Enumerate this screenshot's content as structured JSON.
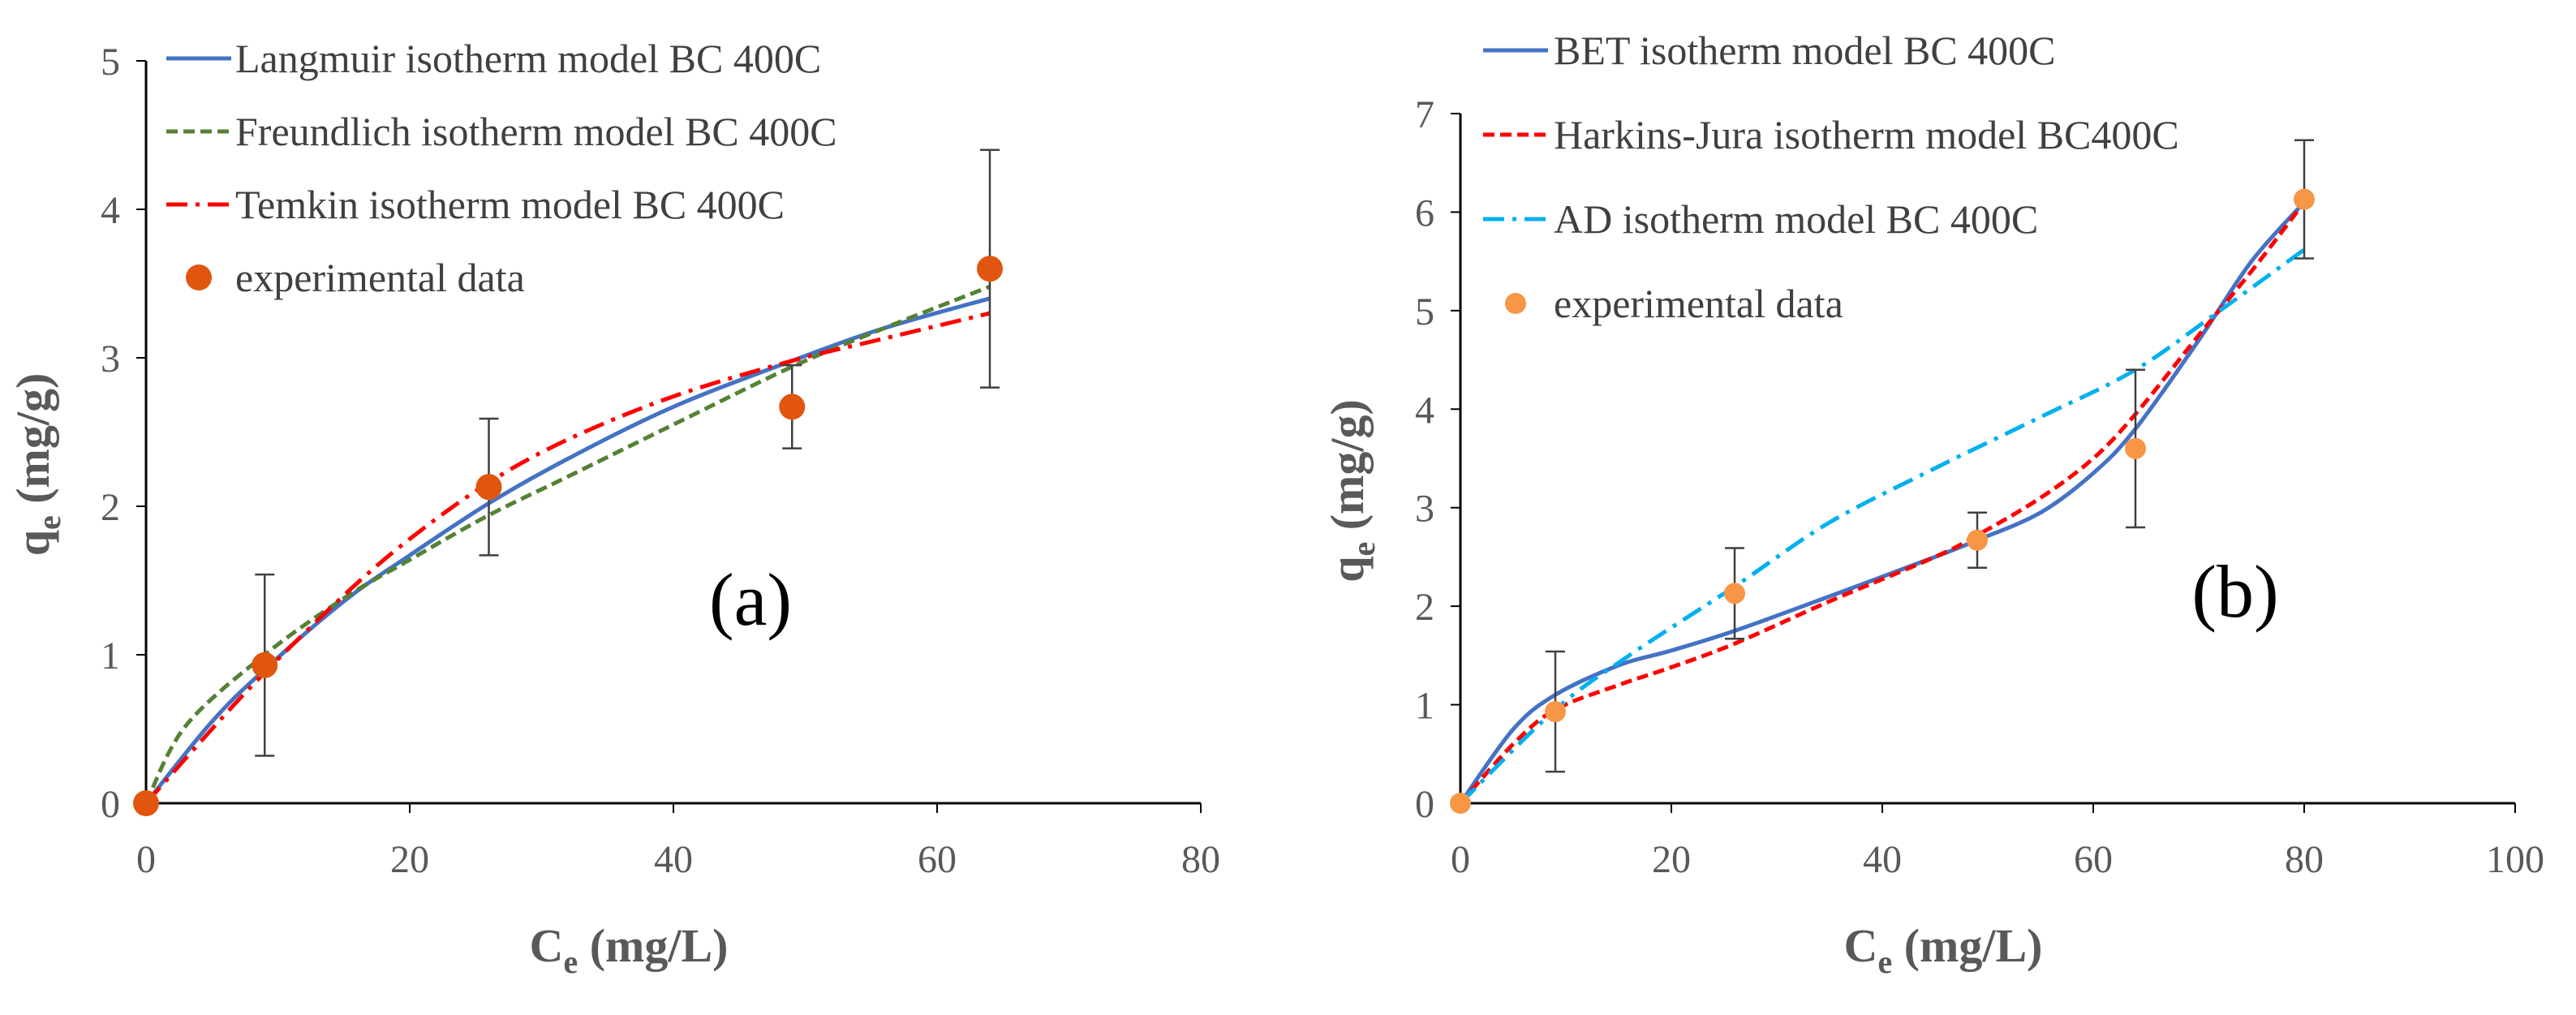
{
  "chart_data": [
    {
      "type": "line",
      "panel_label": "(a)",
      "xlabel": "C",
      "xlabel_sub": "e",
      "xlabel_unit": " (mg/L)",
      "ylabel": "q",
      "ylabel_sub": "e",
      "ylabel_unit": " (mg/g)",
      "xlim": [
        0,
        80
      ],
      "ylim": [
        0,
        5
      ],
      "xticks": [
        0,
        20,
        40,
        60,
        80
      ],
      "yticks": [
        0,
        1,
        2,
        3,
        4,
        5
      ],
      "grid": false,
      "legend_position": "top-left",
      "series": [
        {
          "name": "Langmuir isotherm model BC 400C",
          "style": "solid",
          "color": "#4472C4",
          "x": [
            0,
            5,
            9,
            15,
            20,
            26,
            32,
            40,
            49,
            56,
            64
          ],
          "y": [
            0,
            0.55,
            0.9,
            1.36,
            1.67,
            2.02,
            2.32,
            2.67,
            2.98,
            3.2,
            3.4
          ]
        },
        {
          "name": "Freundlich isotherm model BC 400C",
          "style": "dashed",
          "color": "#548235",
          "x": [
            0,
            3,
            9,
            15,
            20,
            26,
            32,
            40,
            49,
            56,
            64
          ],
          "y": [
            0,
            0.52,
            1.0,
            1.38,
            1.64,
            1.94,
            2.2,
            2.55,
            2.94,
            3.2,
            3.48
          ]
        },
        {
          "name": "Temkin isotherm model BC 400C",
          "style": "dashdot",
          "color": "#FF0000",
          "x": [
            0,
            5,
            9,
            15,
            20,
            26,
            32,
            40,
            49,
            56,
            64
          ],
          "y": [
            0,
            0.5,
            0.88,
            1.4,
            1.78,
            2.16,
            2.45,
            2.74,
            2.98,
            3.13,
            3.3
          ]
        }
      ],
      "experimental": {
        "name": "experimental data",
        "color": "#E0560F",
        "x": [
          0,
          9,
          26,
          49,
          64
        ],
        "y": [
          0,
          0.93,
          2.13,
          2.67,
          3.6
        ],
        "err": [
          0,
          0.61,
          0.46,
          0.28,
          0.8
        ]
      }
    },
    {
      "type": "line",
      "panel_label": "(b)",
      "xlabel": "C",
      "xlabel_sub": "e",
      "xlabel_unit": " (mg/L)",
      "ylabel": "q",
      "ylabel_sub": "e",
      "ylabel_unit": " (mg/g)",
      "xlim": [
        0,
        100
      ],
      "ylim": [
        0,
        7
      ],
      "xticks": [
        0,
        20,
        40,
        60,
        80,
        100
      ],
      "yticks": [
        0,
        1,
        2,
        3,
        4,
        5,
        6,
        7
      ],
      "grid": false,
      "legend_position": "top-left",
      "series": [
        {
          "name": "BET isotherm model BC 400C",
          "style": "solid",
          "color": "#4472C4",
          "x": [
            0,
            5,
            9,
            15,
            20,
            26,
            35,
            45,
            49,
            55,
            60,
            64,
            70,
            75,
            80
          ],
          "y": [
            0,
            0.75,
            1.1,
            1.4,
            1.55,
            1.75,
            2.1,
            2.5,
            2.67,
            2.95,
            3.35,
            3.8,
            4.7,
            5.5,
            6.1
          ]
        },
        {
          "name": "Harkins-Jura isotherm model BC400C",
          "style": "dashed",
          "color": "#FF0000",
          "x": [
            0,
            5,
            9,
            15,
            20,
            26,
            35,
            45,
            49,
            55,
            60,
            64,
            70,
            75,
            80
          ],
          "y": [
            0,
            0.6,
            0.95,
            1.2,
            1.38,
            1.62,
            2.05,
            2.5,
            2.72,
            3.1,
            3.5,
            3.95,
            4.75,
            5.4,
            6.1
          ]
        },
        {
          "name": "AD isotherm model BC 400C",
          "style": "dashdot",
          "color": "#00B0F0",
          "x": [
            0,
            9,
            16,
            26,
            35,
            45,
            55,
            64,
            72,
            80
          ],
          "y": [
            0,
            0.95,
            1.5,
            2.2,
            2.85,
            3.4,
            3.92,
            4.4,
            5.0,
            5.62
          ]
        }
      ],
      "experimental": {
        "name": "experimental data",
        "color": "#F79646",
        "x": [
          0,
          9,
          26,
          49,
          64,
          80
        ],
        "y": [
          0,
          0.93,
          2.13,
          2.67,
          3.6,
          6.13
        ],
        "err": [
          0,
          0.61,
          0.46,
          0.28,
          0.8,
          0.6
        ]
      }
    }
  ]
}
